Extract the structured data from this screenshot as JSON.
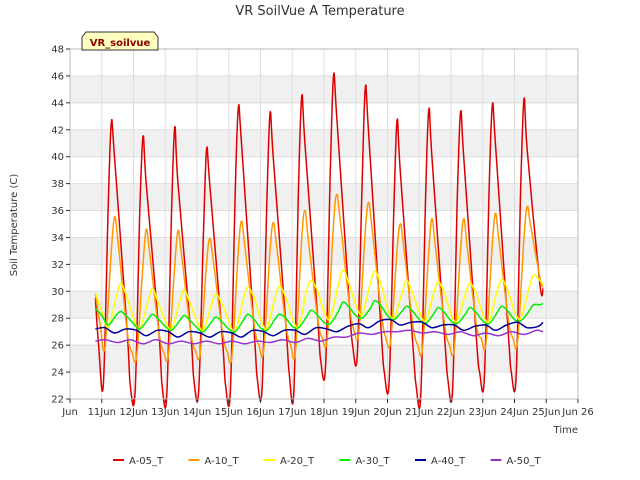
{
  "chart_data": {
    "type": "line",
    "title": "VR SoilVue A Temperature",
    "xlabel": "Time",
    "ylabel": "Soil Temperature (C)",
    "badge": "VR_soilvue",
    "xlim": [
      10,
      26
    ],
    "ylim": [
      22,
      48
    ],
    "x_ticks": [
      10,
      11,
      12,
      13,
      14,
      15,
      16,
      17,
      18,
      19,
      20,
      21,
      22,
      23,
      24,
      25,
      26
    ],
    "x_tick_labels": [
      "Jun",
      "11Jun",
      "12Jun",
      "13Jun",
      "14Jun",
      "15Jun",
      "16Jun",
      "17Jun",
      "18Jun",
      "19Jun",
      "20Jun",
      "21Jun",
      "22Jun",
      "23Jun",
      "24Jun",
      "25Jun",
      "Jun 26"
    ],
    "y_ticks": [
      22,
      24,
      26,
      28,
      30,
      32,
      34,
      36,
      38,
      40,
      42,
      44,
      46,
      48
    ],
    "grid": true,
    "legend_position": "bottom",
    "series": [
      {
        "name": "A-05_T",
        "color": "#dd0000",
        "x": [
          10.8,
          10.9,
          11.05,
          11.2,
          11.3,
          11.4,
          11.8,
          11.9,
          12.05,
          12.2,
          12.3,
          12.4,
          12.8,
          12.9,
          13.05,
          13.2,
          13.3,
          13.4,
          13.8,
          13.9,
          14.05,
          14.2,
          14.3,
          14.4,
          14.8,
          14.9,
          15.05,
          15.2,
          15.3,
          15.4,
          15.8,
          15.9,
          16.05,
          16.2,
          16.3,
          16.4,
          16.8,
          16.9,
          17.05,
          17.2,
          17.3,
          17.4,
          17.8,
          17.9,
          18.05,
          18.2,
          18.3,
          18.4,
          18.8,
          18.9,
          19.05,
          19.2,
          19.3,
          19.4,
          19.8,
          19.9,
          20.05,
          20.2,
          20.3,
          20.4,
          20.8,
          20.9,
          21.05,
          21.2,
          21.3,
          21.4,
          21.8,
          21.9,
          22.05,
          22.2,
          22.3,
          22.4,
          22.8,
          22.9,
          23.05,
          23.2,
          23.3,
          23.4,
          23.8,
          23.9,
          24.05,
          24.2,
          24.3,
          24.4,
          24.8,
          24.9
        ],
        "y": [
          29.5,
          26.0,
          23.0,
          36.0,
          42.5,
          40.0,
          27.0,
          23.0,
          22.5,
          36.0,
          41.5,
          38.0,
          27.0,
          23.0,
          22.3,
          36.0,
          42.2,
          38.0,
          27.0,
          23.5,
          22.5,
          34.0,
          40.5,
          38.0,
          26.5,
          23.0,
          22.5,
          37.0,
          43.6,
          41.0,
          27.0,
          23.5,
          22.8,
          36.5,
          43.2,
          40.0,
          27.5,
          24.0,
          22.5,
          38.0,
          44.5,
          41.0,
          28.0,
          24.8,
          24.5,
          39.0,
          46.0,
          43.0,
          29.0,
          26.0,
          25.3,
          38.0,
          45.1,
          42.0,
          27.0,
          24.0,
          23.2,
          36.0,
          42.7,
          39.0,
          26.0,
          23.0,
          22.3,
          37.0,
          43.5,
          40.0,
          26.5,
          23.5,
          22.7,
          37.0,
          43.3,
          40.0,
          26.5,
          24.0,
          23.5,
          37.5,
          43.8,
          41.0,
          27.0,
          24.0,
          23.6,
          38.0,
          44.3,
          40.5,
          30.5,
          30.2
        ]
      },
      {
        "name": "A-10_T",
        "color": "#ff9900",
        "x": [
          10.8,
          10.95,
          11.1,
          11.3,
          11.4,
          11.5,
          11.8,
          11.95,
          12.1,
          12.3,
          12.4,
          12.5,
          12.8,
          12.95,
          13.1,
          13.3,
          13.4,
          13.5,
          13.8,
          13.95,
          14.1,
          14.3,
          14.4,
          14.5,
          14.8,
          14.95,
          15.1,
          15.3,
          15.4,
          15.5,
          15.8,
          15.95,
          16.1,
          16.3,
          16.4,
          16.5,
          16.8,
          16.95,
          17.1,
          17.3,
          17.4,
          17.5,
          17.8,
          17.95,
          18.1,
          18.3,
          18.4,
          18.5,
          18.8,
          18.95,
          19.1,
          19.3,
          19.4,
          19.5,
          19.8,
          19.95,
          20.1,
          20.3,
          20.4,
          20.5,
          20.8,
          20.95,
          21.1,
          21.3,
          21.4,
          21.5,
          21.8,
          21.95,
          22.1,
          22.3,
          22.4,
          22.5,
          22.8,
          22.95,
          23.1,
          23.3,
          23.4,
          23.5,
          23.8,
          23.95,
          24.1,
          24.3,
          24.4,
          24.5,
          24.8,
          24.9
        ],
        "y": [
          29.8,
          27.5,
          25.8,
          33.0,
          35.5,
          34.0,
          27.0,
          25.5,
          25.2,
          32.0,
          34.6,
          33.0,
          27.0,
          25.5,
          25.3,
          32.0,
          34.5,
          33.0,
          27.0,
          25.6,
          25.4,
          32.0,
          33.9,
          32.5,
          27.0,
          25.5,
          25.2,
          33.0,
          35.2,
          33.5,
          27.5,
          26.0,
          25.6,
          33.0,
          35.1,
          33.5,
          27.5,
          26.0,
          25.5,
          34.0,
          36.0,
          34.0,
          28.0,
          26.5,
          26.5,
          35.0,
          37.2,
          35.5,
          29.0,
          27.0,
          27.0,
          34.5,
          36.6,
          35.0,
          28.5,
          26.5,
          26.3,
          33.0,
          35.0,
          33.5,
          27.5,
          26.0,
          25.7,
          33.0,
          35.4,
          33.5,
          27.5,
          26.0,
          25.7,
          33.0,
          35.4,
          33.5,
          27.5,
          26.5,
          26.1,
          33.5,
          35.8,
          34.0,
          28.0,
          26.5,
          26.3,
          34.0,
          36.3,
          35.0,
          31.0,
          30.3
        ]
      },
      {
        "name": "A-20_T",
        "color": "#ffff00",
        "x": [
          10.8,
          11.0,
          11.2,
          11.45,
          11.6,
          11.8,
          12.0,
          12.2,
          12.45,
          12.6,
          12.8,
          13.0,
          13.2,
          13.45,
          13.6,
          13.8,
          14.0,
          14.2,
          14.45,
          14.6,
          14.8,
          15.0,
          15.2,
          15.45,
          15.6,
          15.8,
          16.0,
          16.2,
          16.45,
          16.6,
          16.8,
          17.0,
          17.2,
          17.45,
          17.6,
          17.8,
          18.0,
          18.2,
          18.45,
          18.6,
          18.8,
          19.0,
          19.2,
          19.45,
          19.6,
          19.8,
          20.0,
          20.2,
          20.45,
          20.6,
          20.8,
          21.0,
          21.2,
          21.45,
          21.6,
          21.8,
          22.0,
          22.2,
          22.45,
          22.6,
          22.8,
          23.0,
          23.2,
          23.45,
          23.6,
          23.8,
          24.0,
          24.2,
          24.45,
          24.6,
          24.8,
          24.9
        ],
        "y": [
          29.9,
          28.5,
          27.3,
          29.5,
          30.6,
          29.5,
          28.0,
          27.2,
          29.2,
          30.2,
          29.0,
          27.8,
          27.2,
          29.2,
          30.1,
          29.0,
          27.8,
          27.1,
          29.0,
          29.8,
          29.0,
          27.8,
          27.0,
          29.3,
          30.3,
          29.5,
          28.0,
          27.2,
          29.5,
          30.4,
          29.5,
          28.0,
          27.4,
          30.0,
          30.8,
          30.0,
          28.5,
          28.0,
          30.5,
          31.6,
          30.5,
          29.0,
          28.3,
          30.5,
          31.5,
          30.5,
          28.7,
          28.0,
          29.8,
          30.8,
          29.8,
          28.5,
          27.8,
          29.8,
          30.7,
          29.8,
          28.3,
          27.8,
          29.8,
          30.6,
          29.8,
          28.3,
          27.8,
          30.0,
          30.9,
          30.0,
          28.5,
          28.0,
          30.2,
          31.2,
          30.8,
          30.5
        ]
      },
      {
        "name": "A-30_T",
        "color": "#00ee00",
        "x": [
          10.8,
          11.0,
          11.2,
          11.45,
          11.6,
          11.8,
          12.0,
          12.2,
          12.45,
          12.6,
          12.8,
          13.0,
          13.2,
          13.45,
          13.6,
          13.8,
          14.0,
          14.2,
          14.45,
          14.6,
          14.8,
          15.0,
          15.2,
          15.45,
          15.6,
          15.8,
          16.0,
          16.2,
          16.45,
          16.6,
          16.8,
          17.0,
          17.2,
          17.45,
          17.6,
          17.8,
          18.0,
          18.2,
          18.45,
          18.6,
          18.8,
          19.0,
          19.2,
          19.45,
          19.6,
          19.8,
          20.0,
          20.2,
          20.45,
          20.6,
          20.8,
          21.0,
          21.2,
          21.45,
          21.6,
          21.8,
          22.0,
          22.2,
          22.45,
          22.6,
          22.8,
          23.0,
          23.2,
          23.45,
          23.6,
          23.8,
          24.0,
          24.2,
          24.45,
          24.6,
          24.8,
          24.9
        ],
        "y": [
          28.7,
          28.2,
          27.5,
          28.2,
          28.5,
          28.1,
          27.6,
          27.2,
          27.9,
          28.3,
          27.9,
          27.4,
          27.1,
          27.8,
          28.2,
          27.8,
          27.3,
          27.0,
          27.7,
          28.1,
          27.7,
          27.2,
          27.0,
          27.8,
          28.3,
          27.9,
          27.3,
          27.1,
          27.9,
          28.3,
          28.0,
          27.4,
          27.3,
          28.1,
          28.6,
          28.2,
          27.7,
          27.6,
          28.5,
          29.2,
          28.8,
          28.2,
          28.0,
          28.7,
          29.3,
          28.9,
          28.2,
          27.9,
          28.5,
          28.9,
          28.5,
          27.9,
          27.6,
          28.3,
          28.8,
          28.4,
          27.8,
          27.6,
          28.3,
          28.8,
          28.4,
          27.8,
          27.6,
          28.4,
          28.9,
          28.5,
          27.9,
          27.8,
          28.5,
          29.0,
          29.0,
          29.1
        ]
      },
      {
        "name": "A-40_T",
        "color": "#000099",
        "x": [
          10.8,
          11.1,
          11.4,
          11.75,
          12.1,
          12.4,
          12.75,
          13.1,
          13.4,
          13.75,
          14.1,
          14.4,
          14.75,
          15.1,
          15.4,
          15.75,
          16.1,
          16.4,
          16.75,
          17.1,
          17.4,
          17.75,
          18.1,
          18.4,
          18.75,
          19.1,
          19.4,
          19.75,
          20.1,
          20.4,
          20.75,
          21.1,
          21.4,
          21.75,
          22.1,
          22.4,
          22.75,
          23.1,
          23.4,
          23.75,
          24.1,
          24.4,
          24.75,
          24.9
        ],
        "y": [
          27.2,
          27.3,
          26.9,
          27.2,
          27.1,
          26.7,
          27.1,
          27.0,
          26.6,
          27.0,
          26.9,
          26.6,
          27.0,
          26.9,
          26.6,
          27.1,
          27.0,
          26.7,
          27.1,
          27.1,
          26.8,
          27.3,
          27.2,
          27.0,
          27.4,
          27.6,
          27.3,
          27.8,
          27.9,
          27.5,
          27.7,
          27.7,
          27.3,
          27.5,
          27.5,
          27.1,
          27.4,
          27.5,
          27.1,
          27.5,
          27.7,
          27.3,
          27.4,
          27.7
        ]
      },
      {
        "name": "A-50_T",
        "color": "#9933cc",
        "x": [
          10.8,
          11.1,
          11.5,
          11.9,
          12.3,
          12.7,
          13.1,
          13.5,
          13.9,
          14.3,
          14.7,
          15.1,
          15.5,
          15.9,
          16.3,
          16.7,
          17.1,
          17.5,
          17.9,
          18.3,
          18.7,
          19.1,
          19.5,
          19.9,
          20.3,
          20.7,
          21.1,
          21.5,
          21.9,
          22.3,
          22.7,
          23.1,
          23.5,
          23.9,
          24.3,
          24.7,
          24.9
        ],
        "y": [
          26.3,
          26.4,
          26.2,
          26.4,
          26.1,
          26.4,
          26.1,
          26.3,
          26.1,
          26.3,
          26.1,
          26.3,
          26.1,
          26.3,
          26.2,
          26.4,
          26.2,
          26.5,
          26.3,
          26.6,
          26.6,
          26.9,
          26.8,
          27.0,
          27.0,
          27.1,
          26.9,
          27.0,
          26.8,
          27.0,
          26.7,
          26.9,
          26.7,
          27.0,
          26.8,
          27.1,
          27.0
        ]
      }
    ]
  }
}
